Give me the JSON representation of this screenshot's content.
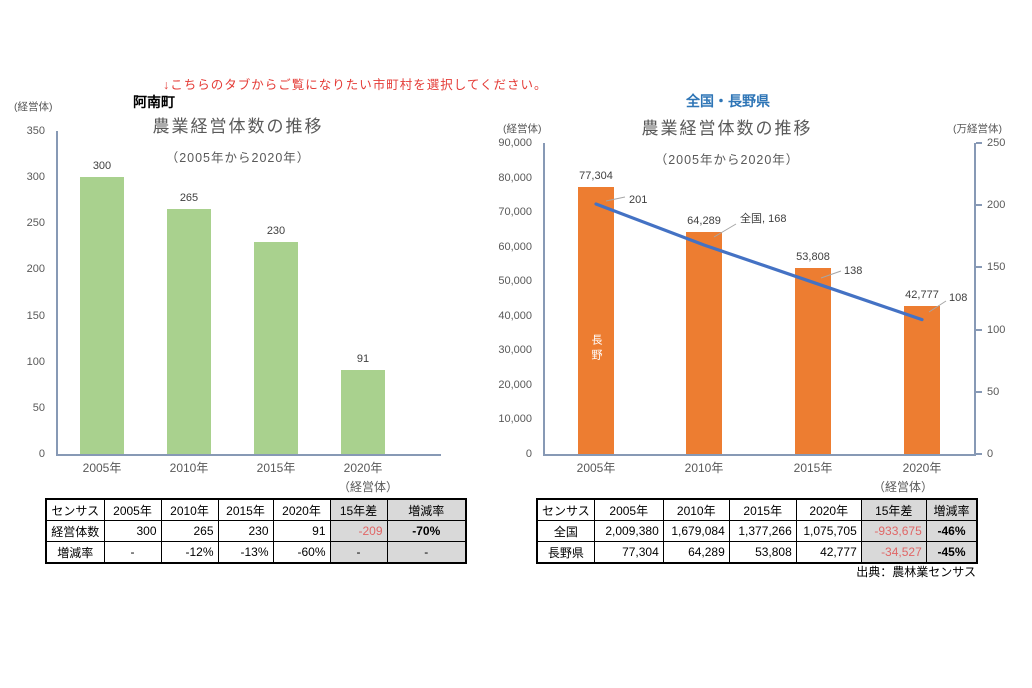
{
  "page": {
    "instruction_note": "↓こちらのタブからご覧になりたい市町村を選択してください。",
    "source_note": "出典：農林業センサス"
  },
  "colors": {
    "bar_green": "#a9d18e",
    "bar_orange": "#ed7d31",
    "line_blue": "#4472c4",
    "axis_blue_gray": "#8799b5",
    "title_gray": "#595959",
    "note_red": "#e43b36",
    "table_header_gray": "#d9d9d9",
    "diff_red": "#e06666",
    "region_blue": "#2e75b6"
  },
  "chart_data": [
    {
      "type": "bar",
      "region_label": "阿南町",
      "title": "農業経営体数の推移",
      "subtitle": "（2005年から2020年）",
      "y_axis_unit": "(経営体)",
      "x_axis_unit": "（経営体）",
      "categories": [
        "2005年",
        "2010年",
        "2015年",
        "2020年"
      ],
      "values": [
        300,
        265,
        230,
        91
      ],
      "value_labels": [
        "300",
        "265",
        "230",
        "91"
      ],
      "ylim": [
        0,
        350
      ],
      "ytick_step": 50,
      "bar_color": "#a9d18e",
      "grid": false,
      "legend": "none"
    },
    {
      "type": "bar+line",
      "region_label": "全国・長野県",
      "title": "農業経営体数の推移",
      "subtitle": "（2005年から2020年）",
      "x_axis_unit": "（経営体）",
      "categories": [
        "2005年",
        "2010年",
        "2015年",
        "2020年"
      ],
      "left_axis": {
        "unit": "(経営体)",
        "min": 0,
        "max": 90000,
        "step": 10000
      },
      "right_axis": {
        "unit": "(万経営体)",
        "min": 0,
        "max": 250,
        "step": 50
      },
      "series": [
        {
          "name": "長野",
          "type": "bar",
          "axis": "left",
          "values": [
            77304,
            64289,
            53808,
            42777
          ],
          "value_labels": [
            "77,304",
            "64,289",
            "53,808",
            "42,777"
          ],
          "color": "#ed7d31",
          "in_bar_label": "長野"
        },
        {
          "name": "全国",
          "type": "line",
          "axis": "right",
          "values": [
            201,
            168,
            138,
            108
          ],
          "value_labels": [
            "201",
            "全国, 168",
            "138",
            "108"
          ],
          "color": "#4472c4"
        }
      ],
      "grid": false,
      "legend": "none"
    }
  ],
  "tables": {
    "anan": {
      "headers": [
        "センサス",
        "2005年",
        "2010年",
        "2015年",
        "2020年",
        "15年差",
        "増減率"
      ],
      "rows": [
        {
          "label": "経営体数",
          "cells": [
            "300",
            "265",
            "230",
            "91",
            "-209",
            "-70%"
          ]
        },
        {
          "label": "増減率",
          "cells": [
            "-",
            "-12%",
            "-13%",
            "-60%",
            "-",
            "-"
          ]
        }
      ]
    },
    "national": {
      "headers": [
        "センサス",
        "2005年",
        "2010年",
        "2015年",
        "2020年",
        "15年差",
        "増減率"
      ],
      "rows": [
        {
          "label": "全国",
          "cells": [
            "2,009,380",
            "1,679,084",
            "1,377,266",
            "1,075,705",
            "-933,675",
            "-46%"
          ]
        },
        {
          "label": "長野県",
          "cells": [
            "77,304",
            "64,289",
            "53,808",
            "42,777",
            "-34,527",
            "-45%"
          ]
        }
      ]
    }
  }
}
